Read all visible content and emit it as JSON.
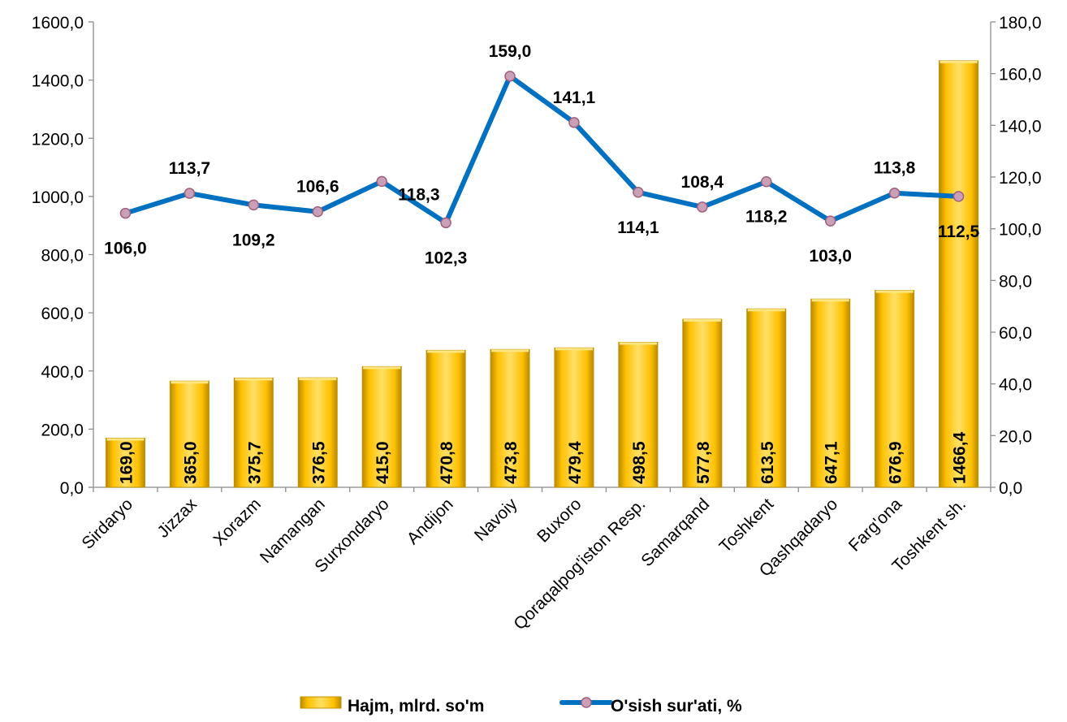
{
  "chart_data": {
    "type": "bar",
    "categories": [
      "Sirdaryo",
      "Jizzax",
      "Xorazm",
      "Namangan",
      "Surxondaryo",
      "Andijon",
      "Navoiy",
      "Buxoro",
      "Qoraqalpog'iston Resp.",
      "Samarqand",
      "Toshkent",
      "Qashqadaryo",
      "Farg'ona",
      "Toshkent sh."
    ],
    "series": [
      {
        "name": "Hajm, mlrd. so'm",
        "type": "bar",
        "axis": "left",
        "color": "#FFC000",
        "values": [
          169.0,
          365.0,
          375.7,
          376.5,
          415.0,
          470.8,
          473.8,
          479.4,
          498.5,
          577.8,
          613.5,
          647.1,
          676.9,
          1466.4
        ],
        "labels": [
          "169,0",
          "365,0",
          "375,7",
          "376,5",
          "415,0",
          "470,8",
          "473,8",
          "479,4",
          "498,5",
          "577,8",
          "613,5",
          "647,1",
          "676,9",
          "1466,4"
        ]
      },
      {
        "name": "O'sish sur'ati, %",
        "type": "line",
        "axis": "right",
        "color": "#0070C0",
        "marker_color": "#C9A0B5",
        "values": [
          106.0,
          113.7,
          109.2,
          106.6,
          118.3,
          102.3,
          159.0,
          141.1,
          114.1,
          108.4,
          118.2,
          103.0,
          113.8,
          112.5
        ],
        "labels": [
          "106,0",
          "113,7",
          "109,2",
          "106,6",
          "118,3",
          "102,3",
          "159,0",
          "141,1",
          "114,1",
          "108,4",
          "118,2",
          "103,0",
          "113,8",
          "112,5"
        ],
        "label_positions": [
          "below",
          "above",
          "below",
          "above",
          "left",
          "below",
          "above",
          "above",
          "below",
          "above",
          "below",
          "below",
          "above",
          "below"
        ]
      }
    ],
    "ylim": [
      0,
      1600
    ],
    "y_ticks": [
      "0,0",
      "200,0",
      "400,0",
      "600,0",
      "800,0",
      "1000,0",
      "1200,0",
      "1400,0",
      "1600,0"
    ],
    "y2lim": [
      0,
      180
    ],
    "y2_ticks": [
      "0,0",
      "20,0",
      "40,0",
      "60,0",
      "80,0",
      "100,0",
      "120,0",
      "140,0",
      "160,0",
      "180,0"
    ],
    "legend_position": "bottom",
    "grid": false
  }
}
